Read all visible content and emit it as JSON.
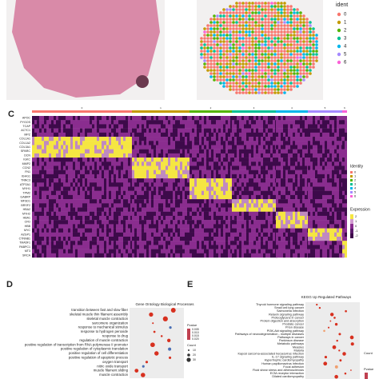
{
  "ident_legend": {
    "title": "ident",
    "items": [
      "0",
      "1",
      "2",
      "3",
      "4",
      "5",
      "6"
    ]
  },
  "panel_c": {
    "label": "C",
    "clusters": [
      "0",
      "1",
      "2",
      "3",
      "4",
      "5",
      "6"
    ],
    "genes": [
      "APOC",
      "PYGOS",
      "TCAP",
      "ACTC1",
      "MPZ",
      "COL1A1",
      "COL1A2",
      "COL3A1",
      "SPARC",
      "DCN",
      "IGKC",
      "MMP2",
      "CCN2",
      "FN1",
      "IGHG1",
      "TNNC3",
      "ATP2A1",
      "MYH1",
      "TPM2",
      "GABRP",
      "MFSD1",
      "BRSF2",
      "HBA2",
      "MYH2",
      "HBA1",
      "CFD",
      "HBB",
      "MYC",
      "AZGP1",
      "CTNNB1",
      "TMA5F1",
      "PABPC1",
      "MT3",
      "SRCA"
    ],
    "identity_title": "Identity",
    "identity_items": [
      "0",
      "1",
      "2",
      "3",
      "4",
      "5",
      "6"
    ],
    "expression_title": "Expression",
    "expression_items": [
      "2",
      "1",
      "0",
      "-1",
      "-2"
    ]
  },
  "panel_d": {
    "label": "D",
    "title": "Gene Ontology Biological Processes",
    "terms": [
      "transition between fast and slow fiber",
      "skeletal muscle thin filament assembly",
      "skeletal muscle contraction",
      "sarcomere organization",
      "response to mechanical stimulus",
      "response to hydrogen peroxide",
      "response to drug",
      "regulation of muscle contraction",
      "positive regulation of transcription from RNA polymerase II promoter",
      "positive regulation of cytoplasmic translation",
      "positive regulation of cell differentiation",
      "positive regulation of apoptotic process",
      "oxygen transport",
      "nitric oxide transport",
      "muscle filament sliding",
      "muscle contraction"
    ],
    "pvalue_title": "Pvalue",
    "pvalue_items": [
      "0.005",
      "0.010",
      "0.015",
      "0.020"
    ],
    "count_title": "Count",
    "count_items": [
      "10",
      "20",
      "30"
    ]
  },
  "panel_e": {
    "label": "E",
    "title": "KEGG Up Regulated Pathways",
    "terms": [
      "Thyroid hormone signaling pathway",
      "Small cell lung cancer",
      "Salmonella infection",
      "Relaxin signaling pathway",
      "Proteoglycans in cancer",
      "Protein digestion and absorption",
      "Prostate cancer",
      "Prion disease",
      "PI3K-Akt signaling pathway",
      "Pathways of neurodegeneration - multiple diseases",
      "Pathways in cancer",
      "Parkinson disease",
      "Metabolic pathways",
      "Measles",
      "Malaria",
      "Kaposi sarcoma-associated herpesvirus infection",
      "IL-17 signaling pathway",
      "Hypertrophic cardiomyopathy",
      "Human papillomavirus infection",
      "Focal adhesion",
      "Fluid shear stress and atherosclerosis",
      "ECM-receptor interaction",
      "Dilated cardiomyopathy"
    ],
    "pvalue_title": "Pvalue",
    "count_title": "Count"
  }
}
